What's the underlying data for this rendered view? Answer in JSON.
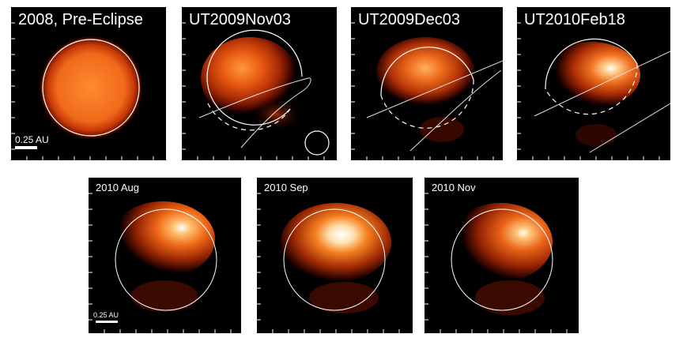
{
  "figure": {
    "top_panels": [
      {
        "label": "2008, Pre-Eclipse"
      },
      {
        "label": "UT2009Nov03"
      },
      {
        "label": "UT2009Dec03"
      },
      {
        "label": "UT2010Feb18"
      }
    ],
    "bottom_panels": [
      {
        "label": "2010 Aug"
      },
      {
        "label": "2010 Sep"
      },
      {
        "label": "2010 Nov"
      }
    ],
    "scale_bar_top": "0.25 AU",
    "scale_bar_bottom": "0.25 AU"
  },
  "colors": {
    "background": "#000000",
    "glow_outer": "#7a1300",
    "glow_mid": "#d84a00",
    "glow_bright": "#ff9a2a",
    "glow_hot": "#ffffff",
    "outline": "#ffffff"
  }
}
